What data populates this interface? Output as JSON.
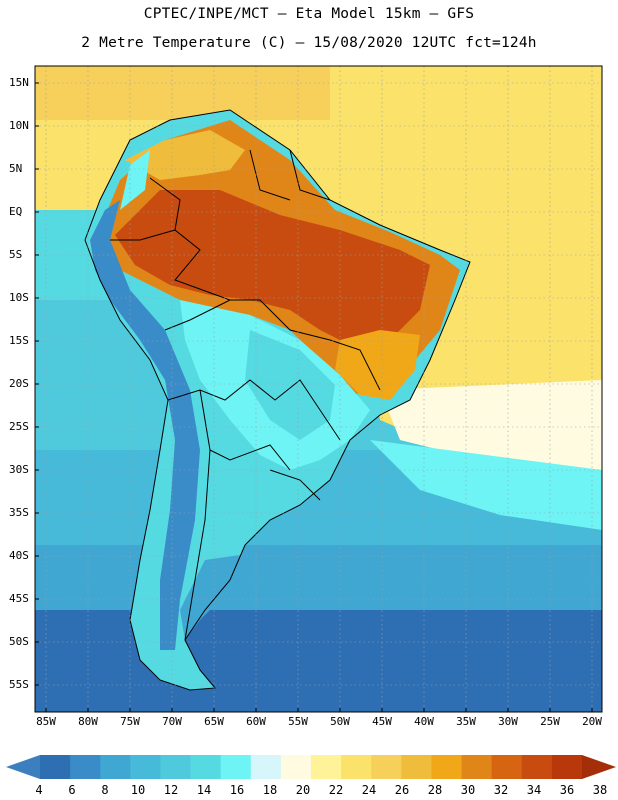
{
  "header": {
    "line1": "CPTEC/INPE/MCT –  Eta Model 15km – GFS",
    "line2": "2 Metre Temperature (C) – 15/08/2020 12UTC fct=124h"
  },
  "map": {
    "lat_labels": [
      "15N",
      "10N",
      "5N",
      "EQ",
      "5S",
      "10S",
      "15S",
      "20S",
      "25S",
      "30S",
      "35S",
      "40S",
      "45S",
      "50S",
      "55S"
    ],
    "lon_labels": [
      "85W",
      "80W",
      "75W",
      "70W",
      "65W",
      "60W",
      "55W",
      "50W",
      "45W",
      "40W",
      "35W",
      "30W",
      "25W",
      "20W"
    ],
    "ocean_color": "#4fd6e6",
    "land_hot_color": "#c84c10",
    "border_color": "#000000"
  },
  "colorbar": {
    "values": [
      "4",
      "6",
      "8",
      "10",
      "12",
      "14",
      "16",
      "18",
      "20",
      "22",
      "24",
      "26",
      "28",
      "30",
      "32",
      "34",
      "36",
      "38"
    ],
    "colors": [
      "#3c7fbe",
      "#2e6fb4",
      "#3a8cc8",
      "#40a6d2",
      "#46bad8",
      "#4ecadc",
      "#56dae2",
      "#6ef4f4",
      "#d6f6fc",
      "#fffbe0",
      "#fff39a",
      "#fbe26a",
      "#f6d05a",
      "#f0bc3c",
      "#f0a818",
      "#e08618",
      "#d66410",
      "#c84c10",
      "#b8380c",
      "#a42e08"
    ]
  }
}
